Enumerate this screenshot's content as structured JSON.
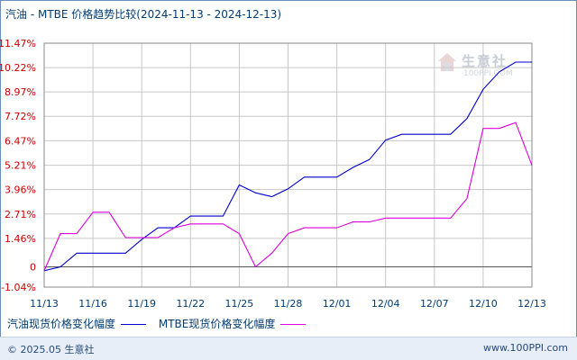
{
  "header": {
    "title": "汽油 - MTBE 价格趋势比较",
    "date_range": "(2024-11-13 - 2024-12-13)"
  },
  "watermark": {
    "brand_cn": "生意社",
    "brand_en": "100PPI.COM"
  },
  "footer": {
    "copyright": "© 2025.05 生意社",
    "site": "www.100PPI.com"
  },
  "colors": {
    "series_1": "#0000cc",
    "series_2": "#dd00dd",
    "ylabel": "#cc0000",
    "xlabel": "#003c74",
    "grid": "#c8c8c8",
    "axis": "#555555"
  },
  "chart_data": {
    "type": "line",
    "title": "汽油 - MTBE 价格趋势比较",
    "xlabel": "",
    "ylabel": "",
    "ylim": [
      -1.04,
      11.47
    ],
    "y_ticks": [
      "11.47%",
      "10.22%",
      "8.97%",
      "7.72%",
      "6.47%",
      "5.21%",
      "3.96%",
      "2.71%",
      "1.46%",
      "0",
      "-1.04%"
    ],
    "y_tick_values": [
      11.47,
      10.22,
      8.97,
      7.72,
      6.47,
      5.21,
      3.96,
      2.71,
      1.46,
      0,
      -1.04
    ],
    "x_ticks": [
      "11/13",
      "11/16",
      "11/19",
      "11/22",
      "11/25",
      "11/28",
      "12/01",
      "12/04",
      "12/07",
      "12/10",
      "12/13"
    ],
    "x": [
      "11/13",
      "11/14",
      "11/15",
      "11/16",
      "11/17",
      "11/18",
      "11/19",
      "11/20",
      "11/21",
      "11/22",
      "11/23",
      "11/24",
      "11/25",
      "11/26",
      "11/27",
      "11/28",
      "11/29",
      "11/30",
      "12/01",
      "12/02",
      "12/03",
      "12/04",
      "12/05",
      "12/06",
      "12/07",
      "12/08",
      "12/09",
      "12/10",
      "12/11",
      "12/12",
      "12/13"
    ],
    "grid": true,
    "legend_position": "bottom-left",
    "series": [
      {
        "name": "汽油现货价格变化幅度",
        "values": [
          -0.2,
          0.0,
          0.7,
          0.7,
          0.7,
          0.7,
          1.4,
          2.0,
          2.0,
          2.6,
          2.6,
          2.6,
          4.2,
          3.8,
          3.6,
          4.0,
          4.6,
          4.6,
          4.6,
          5.1,
          5.5,
          6.5,
          6.8,
          6.8,
          6.8,
          6.8,
          7.6,
          9.1,
          10.0,
          10.5,
          10.5
        ]
      },
      {
        "name": "MTBE现货价格变化幅度",
        "values": [
          -0.2,
          1.7,
          1.7,
          2.8,
          2.8,
          1.5,
          1.5,
          1.5,
          2.0,
          2.2,
          2.2,
          2.2,
          1.7,
          0.0,
          0.7,
          1.7,
          2.0,
          2.0,
          2.0,
          2.3,
          2.3,
          2.5,
          2.5,
          2.5,
          2.5,
          2.5,
          3.5,
          7.1,
          7.1,
          7.4,
          5.2
        ]
      }
    ]
  }
}
